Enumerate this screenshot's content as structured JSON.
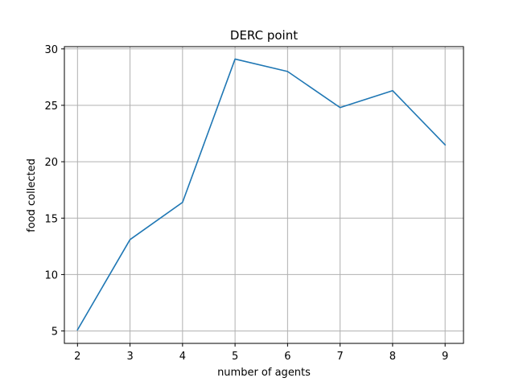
{
  "chart_data": {
    "type": "line",
    "title": "DERC point",
    "xlabel": "number of agents",
    "ylabel": "food collected",
    "x": [
      2,
      3,
      4,
      5,
      6,
      7,
      8,
      9
    ],
    "series": [
      {
        "values": [
          5.1,
          13.1,
          16.4,
          29.1,
          28.0,
          24.8,
          26.3,
          21.5
        ]
      }
    ],
    "xlim": [
      1.75,
      9.35
    ],
    "ylim": [
      3.9,
      30.2
    ],
    "xticks": [
      2,
      3,
      4,
      5,
      6,
      7,
      8,
      9
    ],
    "yticks": [
      5,
      10,
      15,
      20,
      25,
      30
    ],
    "grid": true,
    "legend": "none",
    "colors": {
      "line": "#1f77b4",
      "grid": "#b0b0b0",
      "axes": "#000000"
    }
  }
}
